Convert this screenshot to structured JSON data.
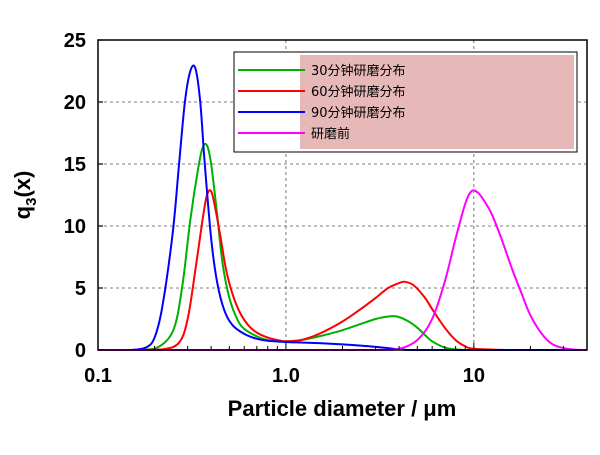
{
  "chart_data": {
    "type": "line",
    "xlabel": "Particle diameter / μm",
    "ylabel": "q3(x)",
    "ylabel_main": "q",
    "ylabel_sub": "3",
    "ylabel_tail": "(x)",
    "x_scale": "log",
    "xlim": [
      0.1,
      40
    ],
    "ylim": [
      0,
      25
    ],
    "x_ticks": [
      0.1,
      1.0,
      10
    ],
    "x_tick_labels": [
      "0.1",
      "1.0",
      "10"
    ],
    "y_ticks": [
      0,
      5,
      10,
      15,
      20,
      25
    ],
    "y_tick_labels": [
      "0",
      "5",
      "10",
      "15",
      "20",
      "25"
    ],
    "grid": "dashed",
    "legend_position": "top-right",
    "legend_background": "#e6b8b7",
    "series": [
      {
        "name": "30分钟研磨分布",
        "color": "#00b000",
        "x": [
          0.15,
          0.2,
          0.25,
          0.28,
          0.31,
          0.34,
          0.36,
          0.38,
          0.4,
          0.43,
          0.46,
          0.5,
          0.55,
          0.6,
          0.7,
          0.8,
          0.9,
          1.0,
          1.2,
          1.5,
          2.0,
          2.5,
          3.0,
          3.5,
          3.9,
          4.5,
          5.0,
          5.5,
          6.0,
          7.0,
          8.0,
          9.0,
          10,
          15,
          20,
          40
        ],
        "y": [
          0,
          0.1,
          1.5,
          5.0,
          10.5,
          14.5,
          16.3,
          16.5,
          15.0,
          11.0,
          7.0,
          4.2,
          2.5,
          1.7,
          1.1,
          0.8,
          0.7,
          0.7,
          0.8,
          1.1,
          1.6,
          2.1,
          2.5,
          2.7,
          2.7,
          2.3,
          1.8,
          1.2,
          0.7,
          0.2,
          0.05,
          0,
          0,
          0,
          0,
          0
        ]
      },
      {
        "name": "60分钟研磨分布",
        "color": "#ff0000",
        "x": [
          0.15,
          0.22,
          0.27,
          0.3,
          0.33,
          0.36,
          0.38,
          0.4,
          0.42,
          0.45,
          0.48,
          0.52,
          0.57,
          0.63,
          0.7,
          0.8,
          0.9,
          1.0,
          1.2,
          1.5,
          2.0,
          2.5,
          3.0,
          3.5,
          4.0,
          4.3,
          4.8,
          5.5,
          6.0,
          7.0,
          8.0,
          9.0,
          10,
          15,
          20,
          40
        ],
        "y": [
          0,
          0.05,
          0.6,
          2.5,
          6.5,
          10.5,
          12.5,
          12.8,
          11.5,
          9.0,
          6.5,
          4.5,
          3.0,
          2.0,
          1.4,
          1.0,
          0.8,
          0.7,
          0.8,
          1.3,
          2.3,
          3.3,
          4.2,
          5.0,
          5.4,
          5.5,
          5.2,
          4.2,
          3.3,
          1.8,
          0.8,
          0.3,
          0.1,
          0,
          0,
          0
        ]
      },
      {
        "name": "90分钟研磨分布",
        "color": "#0000ff",
        "x": [
          0.15,
          0.18,
          0.2,
          0.22,
          0.25,
          0.27,
          0.29,
          0.31,
          0.33,
          0.35,
          0.37,
          0.4,
          0.43,
          0.47,
          0.52,
          0.6,
          0.7,
          0.8,
          1.0,
          1.2,
          1.5,
          2.0,
          2.5,
          3.0,
          3.5,
          4.0,
          4.5,
          5.0,
          10,
          40
        ],
        "y": [
          0,
          0.2,
          1.0,
          3.5,
          9.5,
          15.0,
          20.0,
          22.5,
          22.7,
          20.0,
          15.0,
          9.0,
          5.5,
          3.2,
          2.0,
          1.3,
          0.9,
          0.75,
          0.65,
          0.6,
          0.55,
          0.45,
          0.35,
          0.25,
          0.15,
          0.05,
          0,
          0,
          0,
          0
        ]
      },
      {
        "name": "研磨前",
        "color": "#ff00ff",
        "x": [
          0.1,
          1.0,
          3.0,
          4.0,
          5.0,
          6.0,
          7.0,
          8.0,
          9.0,
          9.7,
          10.5,
          11.5,
          12.5,
          14.0,
          16.0,
          18.0,
          20.0,
          23.0,
          26.0,
          30.0,
          35.0,
          40.0
        ],
        "y": [
          0,
          0,
          0,
          0.1,
          0.8,
          2.5,
          5.5,
          9.0,
          11.8,
          12.8,
          12.7,
          11.9,
          10.9,
          9.0,
          6.5,
          4.5,
          2.8,
          1.3,
          0.5,
          0.15,
          0.02,
          0
        ]
      }
    ]
  }
}
